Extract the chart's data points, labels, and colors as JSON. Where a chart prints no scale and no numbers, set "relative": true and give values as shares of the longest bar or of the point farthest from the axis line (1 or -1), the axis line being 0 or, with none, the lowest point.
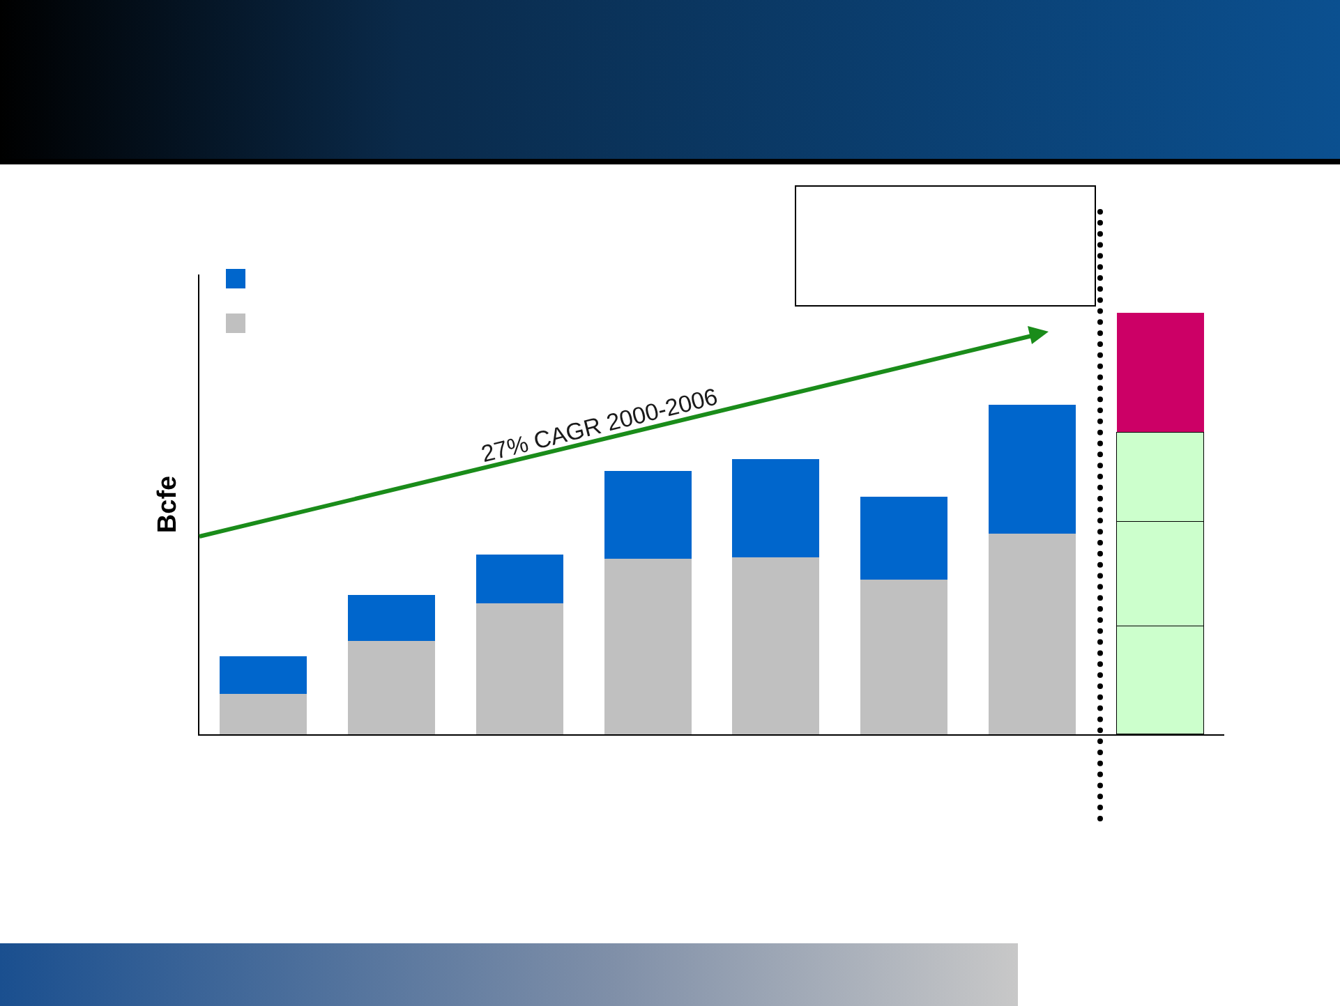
{
  "chart_data": {
    "type": "bar",
    "ylabel": "Bcfe",
    "relative": true,
    "stacked": true,
    "grid": false,
    "categories": [
      null,
      null,
      null,
      null,
      null,
      null,
      null,
      null
    ],
    "series": [
      {
        "color": "#c0c0c0",
        "values": [
          0.096,
          0.221,
          0.31,
          0.416,
          0.419,
          0.366,
          0.475,
          null
        ]
      },
      {
        "color": "#0066cc",
        "values": [
          0.089,
          0.109,
          0.116,
          0.208,
          0.234,
          0.198,
          0.307,
          null
        ]
      },
      {
        "color": "#ccffcc",
        "values": [
          null,
          null,
          null,
          null,
          null,
          null,
          null,
          0.257
        ]
      },
      {
        "color": "#ccffcc",
        "values": [
          null,
          null,
          null,
          null,
          null,
          null,
          null,
          0.248
        ]
      },
      {
        "color": "#ccffcc",
        "values": [
          null,
          null,
          null,
          null,
          null,
          null,
          null,
          0.211
        ]
      },
      {
        "color": "#cc0066",
        "values": [
          null,
          null,
          null,
          null,
          null,
          null,
          null,
          0.284
        ]
      }
    ],
    "annotations": [
      "27% CAGR 2000-2006"
    ]
  }
}
